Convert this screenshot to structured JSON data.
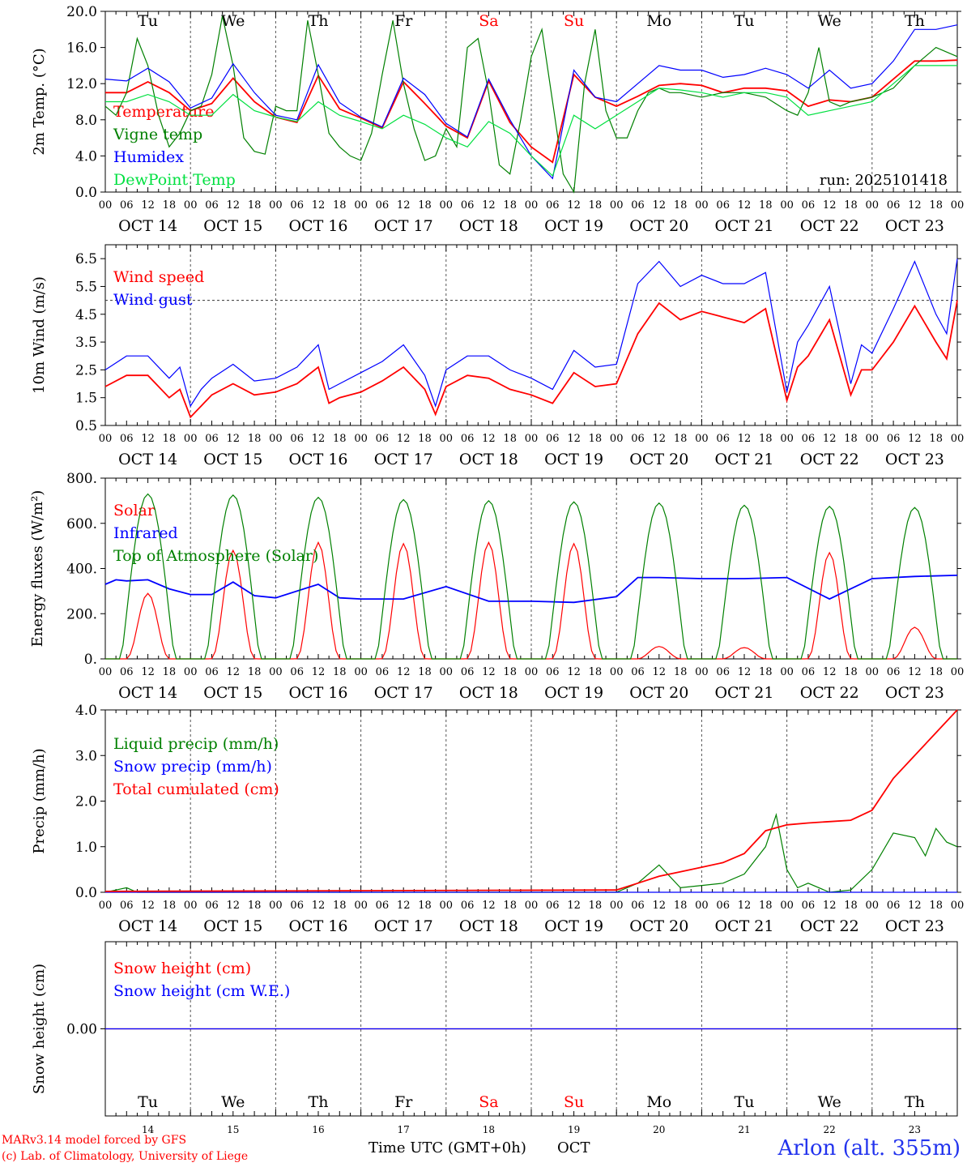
{
  "colors": {
    "red": "#ff0000",
    "green": "#008000",
    "blue": "#0000ff",
    "lightgreen": "#00e040",
    "black": "#000000",
    "axis": "#000000"
  },
  "weekdays": [
    "Tu",
    "We",
    "Th",
    "Fr",
    "Sa",
    "Su",
    "Mo",
    "Tu",
    "We",
    "Th"
  ],
  "weekend_indices": [
    4,
    5
  ],
  "dates": [
    "OCT 14",
    "OCT 15",
    "OCT 16",
    "OCT 17",
    "OCT 18",
    "OCT 19",
    "OCT 20",
    "OCT 21",
    "OCT 22",
    "OCT 23"
  ],
  "day_numbers": [
    "14",
    "15",
    "16",
    "17",
    "18",
    "19",
    "20",
    "21",
    "22",
    "23"
  ],
  "hour_labels": [
    "00",
    "06",
    "12",
    "18"
  ],
  "run_label": "run: 2025101418",
  "footer": {
    "credit_line1": "MARv3.14 model forced by GFS",
    "credit_line2": "(c) Lab. of Climatology, University of Liege",
    "xaxis_title": "Time UTC (GMT+0h)",
    "xaxis_month": "OCT",
    "station": "Arlon (alt. 355m)"
  },
  "chart_data": [
    {
      "type": "line",
      "title": "",
      "ylabel": "2m Temp. (°C)",
      "ylim": [
        0,
        20
      ],
      "yticks": [
        "0.0",
        "4.0",
        "8.0",
        "12.0",
        "16.0",
        "20.0"
      ],
      "ytick_values": [
        0,
        4,
        8,
        12,
        16,
        20
      ],
      "x_unit": "hours since Oct 14 00 UTC",
      "series": [
        {
          "name": "Temperature",
          "color": "red",
          "x": [
            0,
            6,
            12,
            18,
            24,
            30,
            36,
            42,
            48,
            54,
            60,
            66,
            72,
            78,
            84,
            90,
            96,
            102,
            108,
            114,
            120,
            126,
            132,
            138,
            144,
            150,
            156,
            162,
            168,
            174,
            180,
            186,
            192,
            198,
            204,
            210,
            216,
            222,
            228,
            234,
            240
          ],
          "y": [
            11.0,
            11.0,
            12.2,
            11.0,
            9.0,
            9.8,
            12.6,
            10.0,
            8.3,
            7.7,
            12.9,
            9.2,
            8.2,
            7.1,
            12.2,
            9.8,
            7.3,
            6.0,
            12.3,
            7.7,
            5.0,
            3.3,
            13.0,
            10.5,
            9.5,
            10.6,
            11.8,
            12.0,
            11.8,
            11.0,
            11.5,
            11.5,
            11.2,
            9.5,
            10.2,
            10.0,
            10.5,
            12.5,
            14.5,
            14.5,
            14.6
          ]
        },
        {
          "name": "Vigne temp",
          "color": "green",
          "x": [
            0,
            3,
            6,
            9,
            12,
            15,
            18,
            21,
            24,
            27,
            30,
            33,
            36,
            39,
            42,
            45,
            48,
            51,
            54,
            57,
            60,
            63,
            66,
            69,
            72,
            75,
            78,
            81,
            84,
            87,
            90,
            93,
            96,
            99,
            102,
            105,
            108,
            111,
            114,
            117,
            120,
            123,
            126,
            129,
            132,
            135,
            138,
            141,
            144,
            147,
            150,
            153,
            156,
            159,
            162,
            168,
            174,
            180,
            186,
            192,
            195,
            198,
            201,
            204,
            207,
            210,
            216,
            222,
            228,
            234,
            240
          ],
          "y": [
            9.5,
            8.5,
            11.0,
            17.0,
            14.0,
            8.5,
            5.0,
            6.5,
            9.0,
            9.5,
            13.0,
            19.5,
            14.0,
            6.0,
            4.5,
            4.2,
            9.5,
            9.0,
            9.0,
            19.0,
            13.0,
            6.5,
            5.0,
            4.0,
            3.5,
            6.5,
            13.0,
            19.0,
            12.0,
            7.0,
            3.5,
            4.0,
            7.0,
            5.0,
            16.0,
            17.0,
            11.0,
            3.0,
            2.0,
            8.0,
            15.0,
            18.0,
            10.0,
            2.0,
            0.0,
            12.0,
            18.0,
            9.0,
            6.0,
            6.0,
            9.0,
            11.0,
            11.5,
            11.0,
            11.0,
            10.5,
            11.0,
            11.0,
            10.5,
            9.0,
            8.5,
            11.0,
            16.0,
            10.0,
            9.5,
            10.0,
            10.5,
            11.5,
            14.0,
            16.0,
            15.0
          ]
        },
        {
          "name": "Humidex",
          "color": "blue",
          "x": [
            0,
            6,
            12,
            18,
            24,
            30,
            36,
            42,
            48,
            54,
            60,
            66,
            72,
            78,
            84,
            90,
            96,
            102,
            108,
            114,
            120,
            126,
            132,
            138,
            144,
            150,
            156,
            162,
            168,
            174,
            180,
            186,
            192,
            198,
            204,
            210,
            216,
            222,
            228,
            234,
            240
          ],
          "y": [
            12.5,
            12.3,
            13.7,
            12.2,
            9.3,
            10.4,
            14.2,
            11.0,
            8.5,
            8.0,
            14.1,
            9.9,
            8.3,
            7.2,
            12.6,
            10.8,
            7.6,
            6.1,
            12.5,
            8.0,
            4.0,
            1.5,
            13.5,
            10.5,
            10.0,
            12.0,
            14.0,
            13.5,
            13.5,
            12.7,
            13.0,
            13.7,
            13.0,
            11.5,
            13.5,
            11.5,
            12.0,
            14.5,
            18.0,
            18.0,
            18.5
          ]
        },
        {
          "name": "DewPoint Temp",
          "color": "lightgreen",
          "x": [
            0,
            6,
            12,
            18,
            24,
            30,
            36,
            42,
            48,
            54,
            60,
            66,
            72,
            78,
            84,
            90,
            96,
            102,
            108,
            114,
            120,
            126,
            132,
            138,
            144,
            150,
            156,
            162,
            168,
            174,
            180,
            186,
            192,
            198,
            204,
            210,
            216,
            222,
            228,
            234,
            240
          ],
          "y": [
            10.0,
            10.0,
            10.8,
            10.0,
            8.5,
            8.5,
            10.8,
            9.0,
            8.3,
            7.8,
            10.0,
            8.5,
            7.8,
            7.0,
            8.5,
            7.5,
            6.0,
            5.0,
            7.8,
            6.5,
            4.0,
            1.8,
            8.5,
            7.0,
            8.5,
            10.0,
            11.5,
            11.3,
            11.0,
            10.5,
            11.0,
            11.0,
            10.5,
            8.5,
            9.0,
            9.5,
            10.0,
            12.0,
            14.0,
            14.0,
            14.0
          ]
        }
      ]
    },
    {
      "type": "line",
      "ylabel": "10m Wind (m/s)",
      "ylim": [
        0.5,
        7.0
      ],
      "yticks": [
        "0.5",
        "1.5",
        "2.5",
        "3.5",
        "4.5",
        "5.5",
        "6.5"
      ],
      "ytick_values": [
        0.5,
        1.5,
        2.5,
        3.5,
        4.5,
        5.5,
        6.5
      ],
      "reference_line": 5.0,
      "series": [
        {
          "name": "Wind speed",
          "color": "red",
          "x": [
            0,
            6,
            12,
            18,
            21,
            24,
            27,
            30,
            36,
            42,
            48,
            54,
            60,
            63,
            66,
            72,
            78,
            84,
            90,
            93,
            96,
            102,
            108,
            114,
            120,
            126,
            132,
            138,
            144,
            150,
            156,
            162,
            168,
            174,
            180,
            186,
            192,
            195,
            198,
            204,
            210,
            213,
            216,
            222,
            228,
            234,
            237,
            240
          ],
          "y": [
            1.9,
            2.3,
            2.3,
            1.5,
            1.8,
            0.8,
            1.2,
            1.6,
            2.0,
            1.6,
            1.7,
            2.0,
            2.6,
            1.3,
            1.5,
            1.7,
            2.1,
            2.6,
            1.8,
            0.9,
            1.9,
            2.3,
            2.2,
            1.8,
            1.6,
            1.3,
            2.4,
            1.9,
            2.0,
            3.8,
            4.9,
            4.3,
            4.6,
            4.4,
            4.2,
            4.7,
            1.4,
            2.6,
            3.0,
            4.3,
            1.6,
            2.5,
            2.5,
            3.5,
            4.8,
            3.5,
            2.9,
            5.0
          ]
        },
        {
          "name": "Wind gust",
          "color": "blue",
          "x": [
            0,
            6,
            12,
            18,
            21,
            24,
            27,
            30,
            36,
            42,
            48,
            54,
            60,
            63,
            66,
            72,
            78,
            84,
            90,
            93,
            96,
            102,
            108,
            114,
            120,
            126,
            132,
            138,
            144,
            150,
            156,
            162,
            168,
            174,
            180,
            186,
            192,
            195,
            198,
            204,
            210,
            213,
            216,
            222,
            228,
            234,
            237,
            240
          ],
          "y": [
            2.5,
            3.0,
            3.0,
            2.2,
            2.6,
            1.2,
            1.8,
            2.2,
            2.7,
            2.1,
            2.2,
            2.6,
            3.4,
            1.8,
            2.0,
            2.4,
            2.8,
            3.4,
            2.3,
            1.2,
            2.5,
            3.0,
            3.0,
            2.5,
            2.2,
            1.8,
            3.2,
            2.6,
            2.7,
            5.6,
            6.4,
            5.5,
            5.9,
            5.6,
            5.6,
            6.0,
            1.7,
            3.5,
            4.1,
            5.5,
            2.0,
            3.4,
            3.1,
            4.7,
            6.4,
            4.5,
            3.8,
            6.5
          ]
        }
      ]
    },
    {
      "type": "line",
      "ylabel": "Energy fluxes (W/m²)",
      "ylim": [
        0,
        800
      ],
      "yticks": [
        "0.",
        "200.",
        "400.",
        "600.",
        "800."
      ],
      "ytick_values": [
        0,
        200,
        400,
        600,
        800
      ],
      "series": [
        {
          "name": "Solar",
          "color": "red",
          "daily_peak": [
            290,
            480,
            515,
            510,
            515,
            510,
            55,
            50,
            470,
            140
          ],
          "x": [],
          "y": []
        },
        {
          "name": "Infrared",
          "color": "blue",
          "x": [
            0,
            3,
            6,
            12,
            18,
            24,
            30,
            36,
            42,
            48,
            60,
            66,
            72,
            84,
            96,
            108,
            120,
            132,
            144,
            150,
            156,
            168,
            180,
            192,
            204,
            216,
            228,
            240
          ],
          "y": [
            330,
            350,
            345,
            350,
            310,
            285,
            285,
            340,
            280,
            270,
            330,
            270,
            265,
            265,
            320,
            255,
            255,
            250,
            275,
            360,
            360,
            355,
            355,
            360,
            265,
            355,
            365,
            370
          ]
        },
        {
          "name": "Top of Atmosphere (Solar)",
          "color": "green",
          "daily_peak": [
            730,
            725,
            715,
            705,
            700,
            695,
            690,
            680,
            675,
            670
          ],
          "x": [],
          "y": []
        }
      ]
    },
    {
      "type": "line",
      "ylabel": "Precip (mm/h)",
      "ylim": [
        0,
        4.0
      ],
      "yticks": [
        "0.0",
        "1.0",
        "2.0",
        "3.0",
        "4.0"
      ],
      "ytick_values": [
        0,
        1,
        2,
        3,
        4
      ],
      "series": [
        {
          "name": "Liquid precip (mm/h)",
          "color": "green",
          "x": [
            0,
            3,
            6,
            9,
            144,
            150,
            156,
            162,
            168,
            174,
            180,
            186,
            189,
            192,
            195,
            198,
            204,
            210,
            216,
            222,
            228,
            231,
            234,
            237,
            240
          ],
          "y": [
            0,
            0.05,
            0.1,
            0,
            0,
            0.2,
            0.6,
            0.1,
            0.15,
            0.2,
            0.4,
            1.0,
            1.7,
            0.5,
            0.1,
            0.2,
            0.0,
            0.05,
            0.5,
            1.3,
            1.2,
            0.8,
            1.4,
            1.1,
            1.0
          ]
        },
        {
          "name": "Snow precip (mm/h)",
          "color": "blue",
          "x": [
            0,
            240
          ],
          "y": [
            0,
            0
          ]
        },
        {
          "name": "Total cumulated (cm)",
          "color": "red",
          "x": [
            0,
            144,
            150,
            156,
            162,
            168,
            174,
            180,
            186,
            192,
            198,
            204,
            210,
            216,
            222,
            228,
            234,
            240
          ],
          "y": [
            0.02,
            0.05,
            0.2,
            0.35,
            0.45,
            0.55,
            0.65,
            0.85,
            1.35,
            1.48,
            1.52,
            1.55,
            1.58,
            1.8,
            2.5,
            3.0,
            3.5,
            4.0
          ]
        }
      ]
    },
    {
      "type": "line",
      "ylabel": "Snow height (cm)",
      "ylim": [
        -1,
        1
      ],
      "yticks": [
        "0.00"
      ],
      "ytick_values": [
        0
      ],
      "series": [
        {
          "name": "Snow height (cm)",
          "color": "red",
          "x": [
            0,
            240
          ],
          "y": [
            0,
            0
          ]
        },
        {
          "name": "Snow height (cm W.E.)",
          "color": "blue",
          "x": [
            0,
            240
          ],
          "y": [
            0,
            0
          ]
        }
      ]
    }
  ]
}
